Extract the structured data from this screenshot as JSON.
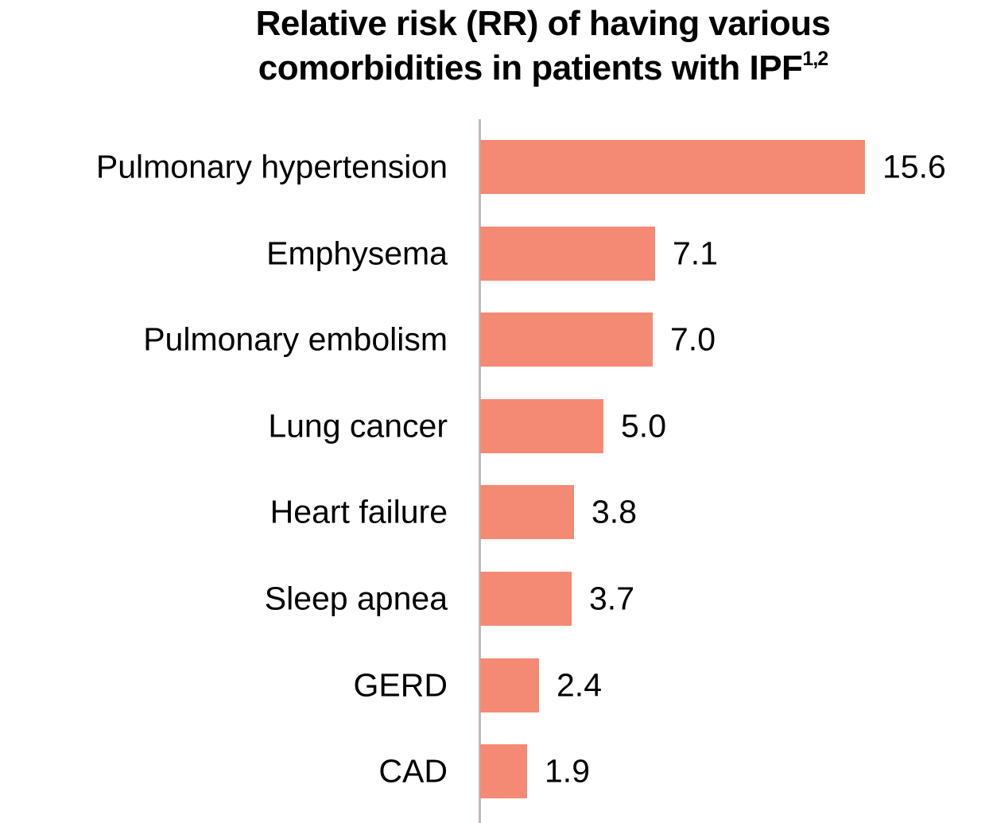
{
  "chart_data": {
    "type": "bar",
    "orientation": "horizontal",
    "title": "Relative risk (RR) of having various comorbidities in patients with IPF",
    "title_line1": "Relative risk (RR) of having various",
    "title_line2": "comorbidities in patients with IPF",
    "title_superscript": "1,2",
    "categories": [
      "Pulmonary hypertension",
      "Emphysema",
      "Pulmonary embolism",
      "Lung cancer",
      "Heart failure",
      "Sleep apnea",
      "GERD",
      "CAD"
    ],
    "values": [
      15.6,
      7.1,
      7.0,
      5.0,
      3.8,
      3.7,
      2.4,
      1.9
    ],
    "value_labels": [
      "15.6",
      "7.1",
      "7.0",
      "5.0",
      "3.8",
      "3.7",
      "2.4",
      "1.9"
    ],
    "xlabel": "",
    "ylabel": "",
    "xlim": [
      0,
      20.6
    ],
    "grid": false,
    "legend": false,
    "data_labels_position": "right-of-bar",
    "colors": {
      "bar": "#F48A73",
      "axis_line": "#C2B9B3",
      "text": "#000000",
      "background": "#FFFFFF"
    }
  }
}
